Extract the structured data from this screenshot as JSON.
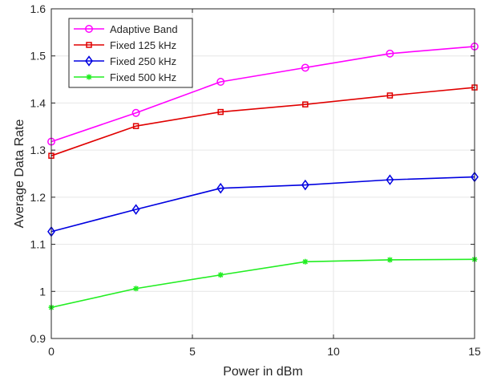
{
  "chart_data": {
    "type": "line",
    "title": "",
    "xlabel": "Power in dBm",
    "ylabel": "Average Data Rate",
    "xlim": [
      0,
      15
    ],
    "ylim": [
      0.9,
      1.6
    ],
    "xticks": [
      0,
      5,
      10,
      15
    ],
    "xtick_labels": [
      "0",
      "5",
      "10",
      "15"
    ],
    "yticks": [
      0.9,
      1.0,
      1.1,
      1.2,
      1.3,
      1.4,
      1.5,
      1.6
    ],
    "ytick_labels": [
      "0.9",
      "1",
      "1.1",
      "1.2",
      "1.3",
      "1.4",
      "1.5",
      "1.6"
    ],
    "grid": true,
    "legend_position": "top-left",
    "x": [
      0,
      3,
      6,
      9,
      12,
      15
    ],
    "series": [
      {
        "name": "Adaptive Band",
        "color": "#ff00ff",
        "marker": "circle",
        "values": [
          1.318,
          1.379,
          1.445,
          1.475,
          1.505,
          1.52
        ]
      },
      {
        "name": "Fixed 125 kHz",
        "color": "#e00000",
        "marker": "square",
        "values": [
          1.288,
          1.351,
          1.381,
          1.397,
          1.416,
          1.433
        ]
      },
      {
        "name": "Fixed 250 kHz",
        "color": "#0000e0",
        "marker": "diamond",
        "values": [
          1.127,
          1.174,
          1.219,
          1.226,
          1.237,
          1.243
        ]
      },
      {
        "name": "Fixed 500 kHz",
        "color": "#22ee22",
        "marker": "asterisk",
        "values": [
          0.966,
          1.006,
          1.035,
          1.063,
          1.067,
          1.068
        ]
      }
    ]
  }
}
